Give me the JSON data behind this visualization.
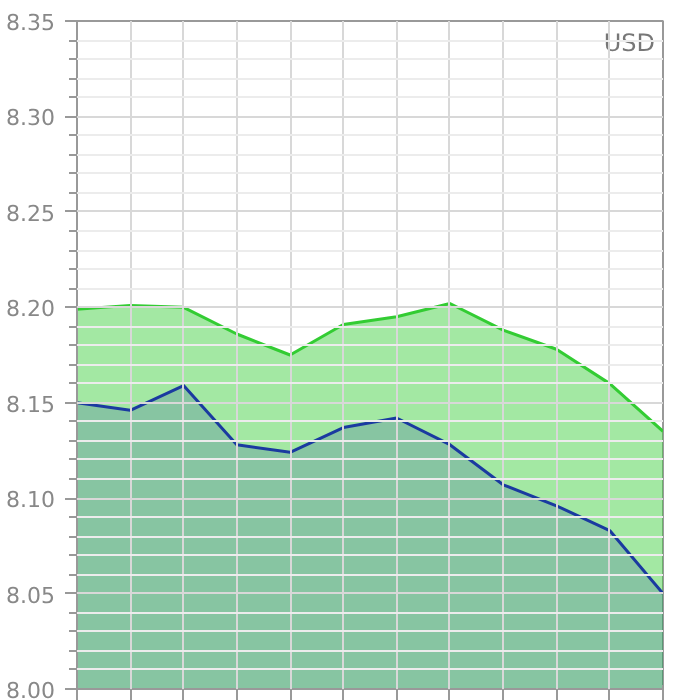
{
  "chart_data": {
    "type": "area",
    "categories": [
      null,
      null,
      null,
      null,
      null,
      null,
      null,
      null,
      null,
      null,
      null,
      null
    ],
    "series": [
      {
        "color": "#33cc33",
        "values": [
          8.199,
          8.201,
          8.2,
          8.186,
          8.175,
          8.191,
          8.195,
          8.202,
          8.188,
          8.178,
          8.16,
          8.135
        ]
      },
      {
        "color": "#1a3aa0",
        "values": [
          8.15,
          8.146,
          8.159,
          8.128,
          8.124,
          8.137,
          8.142,
          8.128,
          8.107,
          8.096,
          8.083,
          8.05
        ]
      }
    ],
    "ylim": [
      8.0,
      8.35
    ],
    "yticks": [
      {
        "value": 8.0,
        "label": "8.00"
      },
      {
        "value": 8.05,
        "label": "8.05"
      },
      {
        "value": 8.1,
        "label": "8.10"
      },
      {
        "value": 8.15,
        "label": "8.15"
      },
      {
        "value": 8.2,
        "label": "8.20"
      },
      {
        "value": 8.25,
        "label": "8.25"
      },
      {
        "value": 8.3,
        "label": "8.30"
      },
      {
        "value": 8.35,
        "label": "8.35"
      }
    ],
    "annotations": [
      "USD"
    ],
    "grid": true,
    "tick_labels": "y"
  }
}
